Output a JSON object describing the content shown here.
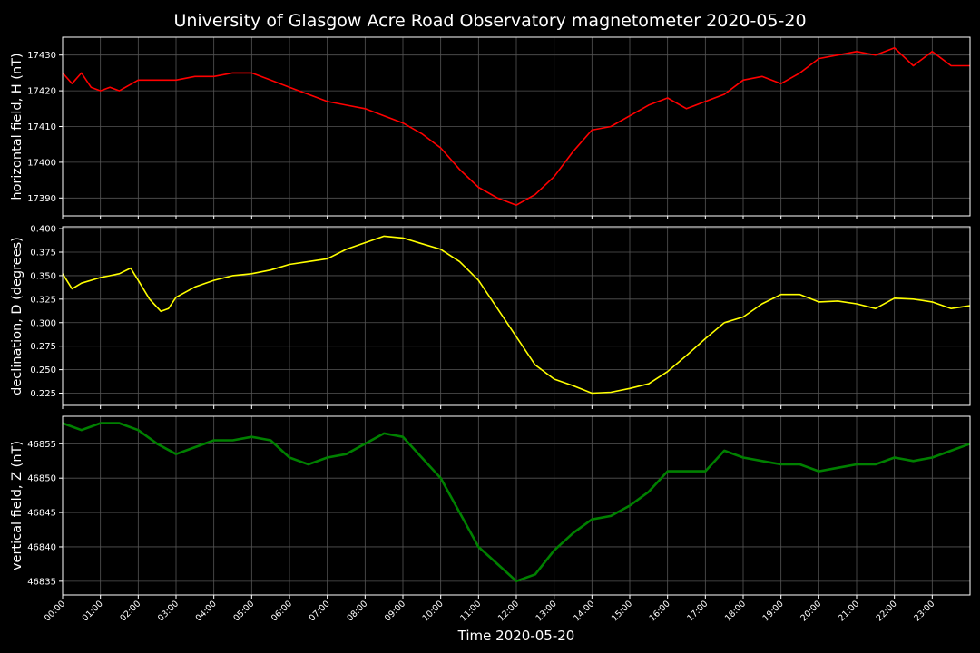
{
  "colors": {
    "background": "#000000",
    "grid": "#555555",
    "text": "#ffffff"
  },
  "chart_data": {
    "type": "line",
    "title": "University of Glasgow Acre Road Observatory magnetometer 2020-05-20",
    "xlabel": "Time 2020-05-20",
    "xlim": [
      0,
      24
    ],
    "x_tick_labels": [
      "00:00",
      "01:00",
      "02:00",
      "03:00",
      "04:00",
      "05:00",
      "06:00",
      "07:00",
      "08:00",
      "09:00",
      "10:00",
      "11:00",
      "12:00",
      "13:00",
      "14:00",
      "15:00",
      "16:00",
      "17:00",
      "18:00",
      "19:00",
      "20:00",
      "21:00",
      "22:00",
      "23:00"
    ],
    "grid": true,
    "panels": [
      {
        "ylabel": "horizontal field, H (nT)",
        "color": "#ff0000",
        "ylim": [
          17385,
          17435
        ],
        "yticks": [
          17390,
          17400,
          17410,
          17420,
          17430
        ],
        "ytick_labels": [
          "17390",
          "17400",
          "17410",
          "17420",
          "17430"
        ],
        "x": [
          0,
          0.25,
          0.5,
          0.75,
          1,
          1.25,
          1.5,
          2,
          2.5,
          3,
          3.5,
          4,
          4.5,
          5,
          5.5,
          6,
          6.5,
          7,
          7.5,
          8,
          8.5,
          9,
          9.5,
          10,
          10.5,
          11,
          11.5,
          12,
          12.5,
          13,
          13.5,
          14,
          14.5,
          15,
          15.5,
          16,
          16.5,
          17,
          17.5,
          18,
          18.5,
          19,
          19.5,
          20,
          20.5,
          21,
          21.5,
          22,
          22.5,
          23,
          23.5,
          24
        ],
        "y": [
          17425,
          17422,
          17425,
          17421,
          17420,
          17421,
          17420,
          17423,
          17423,
          17423,
          17424,
          17424,
          17425,
          17425,
          17423,
          17421,
          17419,
          17417,
          17416,
          17415,
          17413,
          17411,
          17408,
          17404,
          17398,
          17393,
          17390,
          17388,
          17391,
          17396,
          17403,
          17409,
          17410,
          17413,
          17416,
          17418,
          17415,
          17417,
          17419,
          17423,
          17424,
          17422,
          17425,
          17429,
          17430,
          17431,
          17430,
          17432,
          17427,
          17431,
          17427,
          17427
        ]
      },
      {
        "ylabel": "declination, D (degrees)",
        "color": "#ffff00",
        "ylim": [
          0.212,
          0.402
        ],
        "yticks": [
          0.225,
          0.25,
          0.275,
          0.3,
          0.325,
          0.35,
          0.375,
          0.4
        ],
        "ytick_labels": [
          "0.225",
          "0.250",
          "0.275",
          "0.300",
          "0.325",
          "0.350",
          "0.375",
          "0.400"
        ],
        "x": [
          0,
          0.25,
          0.5,
          1,
          1.5,
          1.8,
          2,
          2.3,
          2.6,
          2.8,
          3,
          3.5,
          4,
          4.5,
          5,
          5.5,
          6,
          6.5,
          7,
          7.5,
          8,
          8.5,
          9,
          9.5,
          10,
          10.5,
          11,
          11.5,
          12,
          12.5,
          13,
          13.5,
          14,
          14.5,
          15,
          15.5,
          16,
          16.5,
          17,
          17.5,
          18,
          18.5,
          19,
          19.5,
          20,
          20.5,
          21,
          21.5,
          22,
          22.5,
          23,
          23.5,
          24
        ],
        "y": [
          0.352,
          0.336,
          0.342,
          0.348,
          0.352,
          0.358,
          0.345,
          0.325,
          0.312,
          0.315,
          0.327,
          0.338,
          0.345,
          0.35,
          0.352,
          0.356,
          0.362,
          0.365,
          0.368,
          0.378,
          0.385,
          0.392,
          0.39,
          0.384,
          0.378,
          0.365,
          0.345,
          0.315,
          0.285,
          0.255,
          0.24,
          0.233,
          0.225,
          0.226,
          0.23,
          0.235,
          0.248,
          0.265,
          0.283,
          0.3,
          0.306,
          0.32,
          0.33,
          0.33,
          0.322,
          0.323,
          0.32,
          0.315,
          0.326,
          0.325,
          0.322,
          0.315,
          0.318
        ]
      },
      {
        "ylabel": "vertical field, Z (nT)",
        "color": "#008000",
        "ylim": [
          46833,
          46859
        ],
        "yticks": [
          46835,
          46840,
          46845,
          46850,
          46855
        ],
        "ytick_labels": [
          "46835",
          "46840",
          "46845",
          "46850",
          "46855"
        ],
        "x": [
          0,
          0.5,
          1,
          1.5,
          2,
          2.5,
          3,
          3.5,
          4,
          4.5,
          5,
          5.5,
          6,
          6.5,
          7,
          7.5,
          8,
          8.5,
          9,
          9.5,
          10,
          10.5,
          11,
          11.5,
          12,
          12.5,
          13,
          13.5,
          14,
          14.5,
          15,
          15.5,
          16,
          16.5,
          17,
          17.5,
          18,
          18.5,
          19,
          19.5,
          20,
          20.5,
          21,
          21.5,
          22,
          22.5,
          23,
          23.5,
          24
        ],
        "y": [
          46858,
          46857,
          46858,
          46858,
          46857,
          46855,
          46853.5,
          46854.5,
          46855.5,
          46855.5,
          46856,
          46855.5,
          46853,
          46852,
          46853,
          46853.5,
          46855,
          46856.5,
          46856,
          46853,
          46850,
          46845,
          46840,
          46837.5,
          46835,
          46836,
          46839.5,
          46842,
          46844,
          46844.5,
          46846,
          46848,
          46851,
          46851,
          46851,
          46854,
          46853,
          46852.5,
          46852,
          46852,
          46851,
          46851.5,
          46852,
          46852,
          46853,
          46852.5,
          46853,
          46854,
          46855
        ]
      }
    ]
  }
}
